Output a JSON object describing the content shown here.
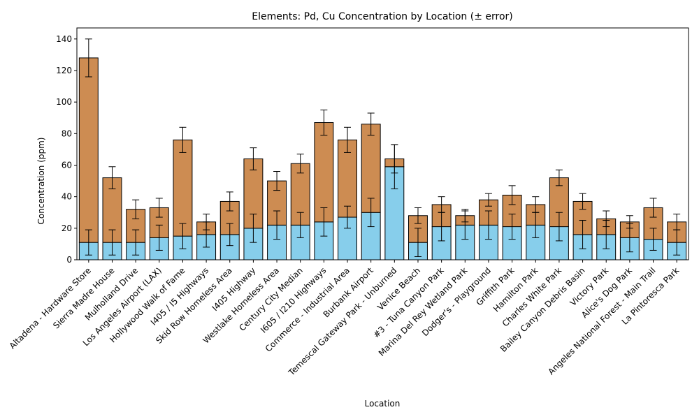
{
  "chart_data": {
    "type": "bar",
    "stacked": true,
    "title": "Elements: Pd, Cu Concentration by Location (± error)",
    "xlabel": "Location",
    "ylabel": "Concentration (ppm)",
    "ylim": [
      0,
      147
    ],
    "yticks": [
      0,
      20,
      40,
      60,
      80,
      100,
      120,
      140
    ],
    "grid": false,
    "categories": [
      "Altadena - Hardware Store",
      "Sierra Madre House",
      "Mulholland Drive",
      "Los Angeles Airport (LAX)",
      "Hollywood Walk of Fame",
      "I405 / I5 Highways",
      "Skid Row Homeless Area",
      "I405 Highway",
      "Westlake Homeless Area",
      "Century City Median",
      "I605 / I210 Highways",
      "Commerce - Industrial Area",
      "Burbank Airport",
      "Temescal Gateway Park - Unburned",
      "Venice Beach",
      "#3 - Tuna Canyon Park",
      "Marina Del Rey Wetland Park",
      "Dodger's - Playground",
      "Griffith Park",
      "Hamilton Park",
      "Charles White Park",
      "Bailey Canyon Debris Basin",
      "Victory Park",
      "Alice's Dog Park",
      "Angeles National Forest - Main Trail",
      "La Pintoresca Park"
    ],
    "series": [
      {
        "color": "#87ceeb",
        "values": [
          11,
          11,
          11,
          14,
          15,
          16,
          16,
          20,
          22,
          22,
          24,
          27,
          30,
          59,
          11,
          21,
          22,
          22,
          21,
          22,
          21,
          16,
          16,
          14,
          13,
          11
        ],
        "errors": [
          8,
          8,
          8,
          8,
          8,
          8,
          7,
          9,
          9,
          8,
          9,
          7,
          9,
          14,
          9,
          9,
          9,
          9,
          8,
          8,
          9,
          9,
          9,
          9,
          7,
          8
        ]
      },
      {
        "color": "#cd8c52",
        "values": [
          117,
          41,
          21,
          19,
          61,
          8,
          21,
          44,
          28,
          39,
          63,
          49,
          56,
          5,
          17,
          14,
          6,
          16,
          20,
          13,
          31,
          21,
          10,
          10,
          20,
          13
        ],
        "errors": [
          12,
          7,
          6,
          6,
          8,
          5,
          6,
          7,
          6,
          6,
          8,
          8,
          7,
          9,
          5,
          5,
          4,
          4,
          6,
          5,
          5,
          5,
          5,
          4,
          6,
          5
        ]
      }
    ]
  }
}
